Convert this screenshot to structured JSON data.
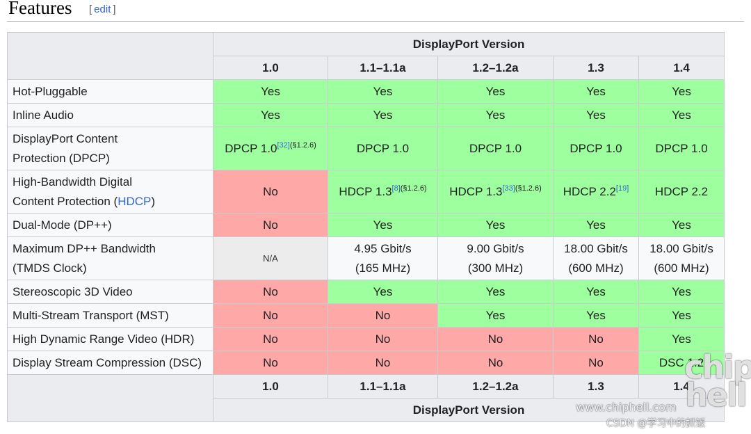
{
  "section": {
    "title": "Features",
    "edit_label": "edit",
    "bracket_open": "[",
    "bracket_close": "]"
  },
  "table": {
    "group_header": "DisplayPort Version",
    "versions": [
      "1.0",
      "1.1–1.1a",
      "1.2–1.2a",
      "1.3",
      "1.4"
    ],
    "rows": [
      {
        "label": "Hot-Pluggable",
        "cells": [
          {
            "text": "Yes",
            "status": "yes"
          },
          {
            "text": "Yes",
            "status": "yes"
          },
          {
            "text": "Yes",
            "status": "yes"
          },
          {
            "text": "Yes",
            "status": "yes"
          },
          {
            "text": "Yes",
            "status": "yes"
          }
        ]
      },
      {
        "label": "Inline Audio",
        "cells": [
          {
            "text": "Yes",
            "status": "yes"
          },
          {
            "text": "Yes",
            "status": "yes"
          },
          {
            "text": "Yes",
            "status": "yes"
          },
          {
            "text": "Yes",
            "status": "yes"
          },
          {
            "text": "Yes",
            "status": "yes"
          }
        ]
      },
      {
        "label_line1": "DisplayPort Content",
        "label_line2": "Protection (DPCP)",
        "cells": [
          {
            "text": "DPCP 1.0",
            "ref": "[32]",
            "section": "(§1.2.6)",
            "status": "yes"
          },
          {
            "text": "DPCP 1.0",
            "status": "yes"
          },
          {
            "text": "DPCP 1.0",
            "status": "yes"
          },
          {
            "text": "DPCP 1.0",
            "status": "yes"
          },
          {
            "text": "DPCP 1.0",
            "status": "yes"
          }
        ]
      },
      {
        "label_line1": "High-Bandwidth Digital",
        "label_line2_pre": "Content Protection (",
        "label_line2_link": "HDCP",
        "label_line2_post": ")",
        "cells": [
          {
            "text": "No",
            "status": "no"
          },
          {
            "text": "HDCP 1.3",
            "ref": "[8]",
            "section": "(§1.2.6)",
            "status": "yes"
          },
          {
            "text": "HDCP 1.3",
            "ref": "[33]",
            "section": "(§1.2.6)",
            "status": "yes"
          },
          {
            "text": "HDCP 2.2",
            "ref": "[19]",
            "status": "yes"
          },
          {
            "text": "HDCP 2.2",
            "status": "yes"
          }
        ]
      },
      {
        "label": "Dual-Mode (DP++)",
        "cells": [
          {
            "text": "No",
            "status": "no"
          },
          {
            "text": "Yes",
            "status": "yes"
          },
          {
            "text": "Yes",
            "status": "yes"
          },
          {
            "text": "Yes",
            "status": "yes"
          },
          {
            "text": "Yes",
            "status": "yes"
          }
        ]
      },
      {
        "label_line1": "Maximum DP++ Bandwidth",
        "label_line2": "(TMDS Clock)",
        "cells": [
          {
            "text": "N/A",
            "status": "na"
          },
          {
            "line1": "4.95 Gbit/s",
            "line2": "(165 MHz)",
            "status": "plain"
          },
          {
            "line1": "9.00 Gbit/s",
            "line2": "(300 MHz)",
            "status": "plain"
          },
          {
            "line1": "18.00 Gbit/s",
            "line2": "(600 MHz)",
            "status": "plain"
          },
          {
            "line1": "18.00 Gbit/s",
            "line2": "(600 MHz)",
            "status": "plain"
          }
        ]
      },
      {
        "label": "Stereoscopic 3D Video",
        "cells": [
          {
            "text": "No",
            "status": "no"
          },
          {
            "text": "Yes",
            "status": "yes"
          },
          {
            "text": "Yes",
            "status": "yes"
          },
          {
            "text": "Yes",
            "status": "yes"
          },
          {
            "text": "Yes",
            "status": "yes"
          }
        ]
      },
      {
        "label": "Multi-Stream Transport (MST)",
        "cells": [
          {
            "text": "No",
            "status": "no"
          },
          {
            "text": "No",
            "status": "no"
          },
          {
            "text": "Yes",
            "status": "yes"
          },
          {
            "text": "Yes",
            "status": "yes"
          },
          {
            "text": "Yes",
            "status": "yes"
          }
        ]
      },
      {
        "label": "High Dynamic Range Video (HDR)",
        "cells": [
          {
            "text": "No",
            "status": "no"
          },
          {
            "text": "No",
            "status": "no"
          },
          {
            "text": "No",
            "status": "no"
          },
          {
            "text": "No",
            "status": "no"
          },
          {
            "text": "Yes",
            "status": "yes"
          }
        ]
      },
      {
        "label": "Display Stream Compression (DSC)",
        "cells": [
          {
            "text": "No",
            "status": "no"
          },
          {
            "text": "No",
            "status": "no"
          },
          {
            "text": "No",
            "status": "no"
          },
          {
            "text": "No",
            "status": "no"
          },
          {
            "text": "DSC 1.2",
            "status": "yes"
          }
        ]
      }
    ]
  },
  "watermarks": {
    "logo": "chip hell",
    "url": "www.chiphell.com",
    "csdn": "CSDN @学习中的抓饭"
  },
  "colors": {
    "yes": "#9eff9e",
    "no": "#ffa8a8",
    "na": "#ececec",
    "header": "#eaecf0",
    "link": "#3366cc"
  }
}
